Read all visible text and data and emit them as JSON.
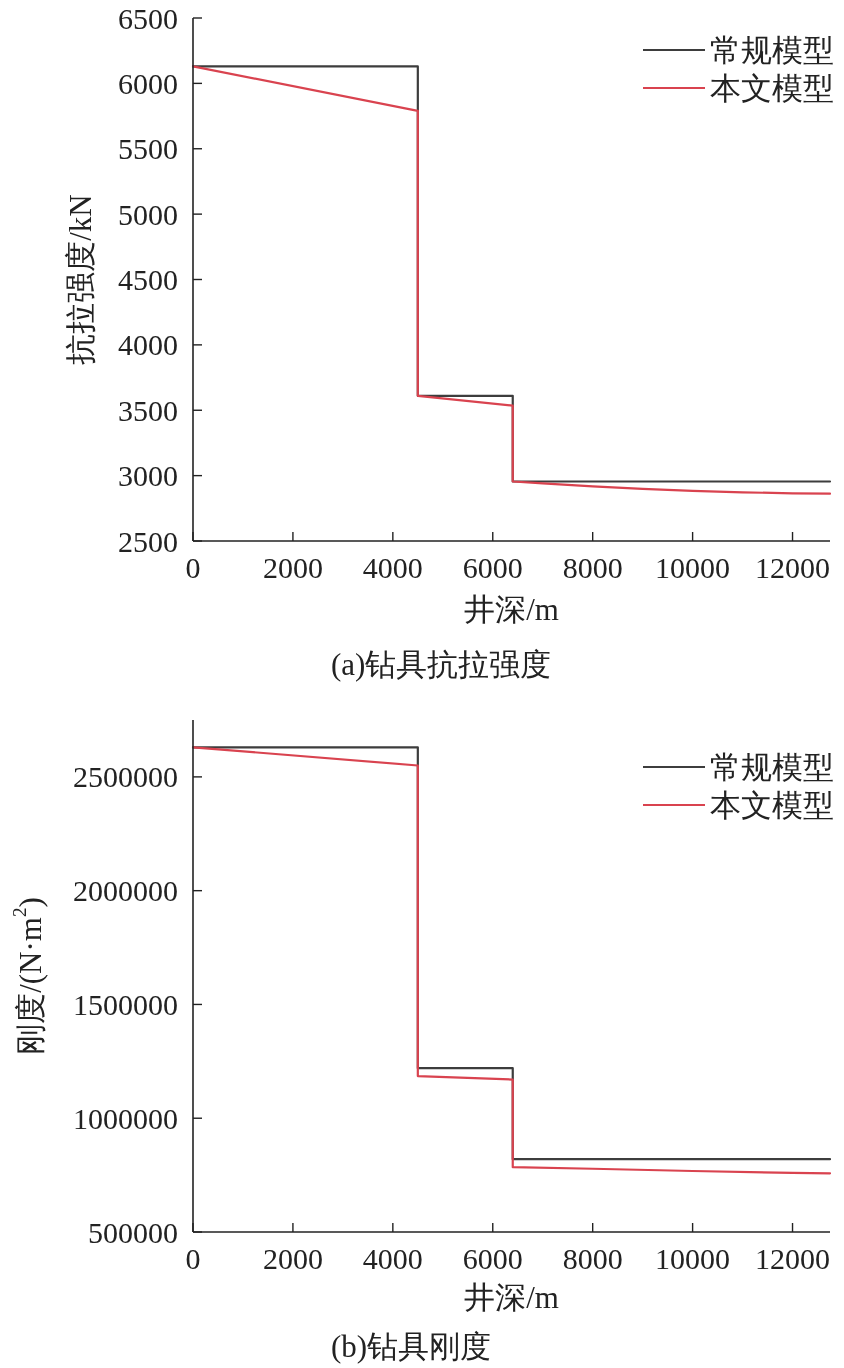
{
  "chart_data": [
    {
      "type": "line",
      "title": "(a)钻具抗拉强度",
      "xlabel": "井深/m",
      "ylabel": "抗拉强度/kN",
      "xlim": [
        0,
        12750
      ],
      "ylim": [
        2500,
        6500
      ],
      "xticks": [
        0,
        2000,
        4000,
        6000,
        8000,
        10000,
        12000
      ],
      "yticks": [
        2500,
        3000,
        3500,
        4000,
        4500,
        5000,
        5500,
        6000,
        6500
      ],
      "grid": false,
      "legend": "top right",
      "series": [
        {
          "name": "常规模型",
          "color": "#3d3d3d",
          "x": [
            0,
            4500,
            4500,
            6400,
            6400,
            12750
          ],
          "values": [
            6130,
            6130,
            3610,
            3610,
            2955,
            2955
          ]
        },
        {
          "name": "本文模型",
          "color": "#d9434f",
          "x": [
            0,
            4500,
            4500,
            6400,
            6400,
            7000,
            8000,
            9000,
            10000,
            11000,
            12000,
            12750
          ],
          "values": [
            6130,
            5790,
            3610,
            3535,
            2955,
            2940,
            2918,
            2898,
            2883,
            2872,
            2865,
            2862
          ]
        }
      ]
    },
    {
      "type": "line",
      "title": "(b)钻具刚度",
      "xlabel": "井深/m",
      "ylabel": "刚度/(N·m$^{2}$)",
      "xlim": [
        0,
        12750
      ],
      "ylim": [
        500000,
        2750000
      ],
      "xticks": [
        0,
        2000,
        4000,
        6000,
        8000,
        10000,
        12000
      ],
      "yticks": [
        500000,
        1000000,
        1500000,
        2000000,
        2500000
      ],
      "grid": false,
      "legend": "top right",
      "series": [
        {
          "name": "常规模型",
          "color": "#3d3d3d",
          "x": [
            0,
            4500,
            4500,
            6400,
            6400,
            12750
          ],
          "values": [
            2630000,
            2630000,
            1220000,
            1220000,
            820000,
            820000
          ]
        },
        {
          "name": "本文模型",
          "color": "#d9434f",
          "x": [
            0,
            4500,
            4500,
            6400,
            6400,
            8000,
            10000,
            12000,
            12750
          ],
          "values": [
            2630000,
            2550000,
            1185000,
            1170000,
            785000,
            778000,
            768000,
            760000,
            758000
          ]
        }
      ]
    }
  ]
}
